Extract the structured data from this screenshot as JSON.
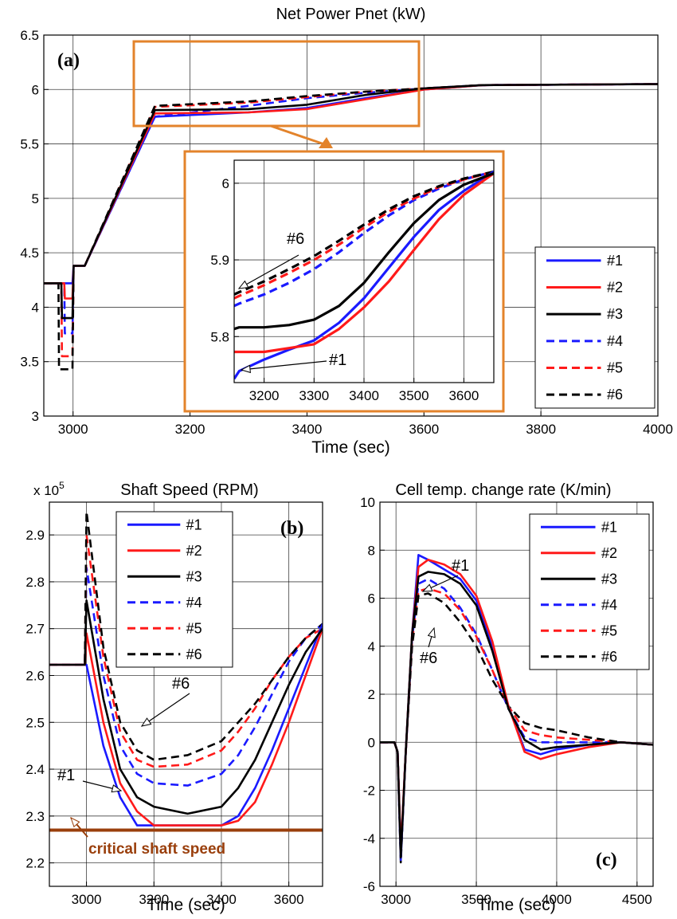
{
  "colors": {
    "s1": "#1a1aff",
    "s2": "#ff1a1a",
    "s3": "#000000",
    "highlight": "#e3832b",
    "critical": "#9a3f0c"
  },
  "legend": [
    "#1",
    "#2",
    "#3",
    "#4",
    "#5",
    "#6"
  ],
  "chart_data": [
    {
      "id": "a",
      "type": "line",
      "panel_label": "(a)",
      "title": "Net Power Pnet (kW)",
      "xlabel": "Time (sec)",
      "ylabel": "",
      "xlim": [
        2950,
        4000
      ],
      "ylim": [
        3,
        6.5
      ],
      "xticks": [
        "3000",
        "3200",
        "3400",
        "3600",
        "3800",
        "4000"
      ],
      "yticks": [
        "3",
        "3.5",
        "4",
        "4.5",
        "5",
        "5.5",
        "6",
        "6.5"
      ],
      "grid": true,
      "legend_position": "lower-right",
      "series": [
        {
          "name": "#1",
          "style": "solid",
          "x": [
            2950,
            2999,
            3001,
            3010,
            3020,
            3140,
            3300,
            3400,
            3500,
            3600,
            3700,
            4000
          ],
          "y": [
            4.22,
            4.22,
            4.38,
            4.38,
            4.38,
            5.75,
            5.79,
            5.83,
            5.92,
            6.0,
            6.04,
            6.05
          ]
        },
        {
          "name": "#2",
          "style": "solid",
          "x": [
            2950,
            2985,
            2986,
            2999,
            3001,
            3010,
            3020,
            3140,
            3300,
            3400,
            3500,
            3600,
            3700,
            4000
          ],
          "y": [
            4.22,
            4.22,
            4.08,
            4.08,
            4.38,
            4.38,
            4.38,
            5.78,
            5.79,
            5.82,
            5.91,
            6.0,
            6.04,
            6.05
          ]
        },
        {
          "name": "#3",
          "style": "solid",
          "x": [
            2950,
            2980,
            2981,
            2999,
            3001,
            3010,
            3020,
            3140,
            3300,
            3400,
            3500,
            3600,
            3700,
            4000
          ],
          "y": [
            4.22,
            4.22,
            3.9,
            3.9,
            4.38,
            4.38,
            4.38,
            5.81,
            5.82,
            5.86,
            5.95,
            6.01,
            6.04,
            6.05
          ]
        },
        {
          "name": "#4",
          "style": "dashed",
          "x": [
            2950,
            2985,
            2986,
            2999,
            3001,
            3010,
            3020,
            3140,
            3300,
            3400,
            3500,
            3600,
            3700,
            4000
          ],
          "y": [
            4.22,
            4.22,
            3.76,
            3.76,
            4.38,
            4.38,
            4.38,
            5.75,
            5.85,
            5.92,
            5.97,
            6.01,
            6.04,
            6.05
          ]
        },
        {
          "name": "#5",
          "style": "dashed",
          "x": [
            2950,
            2980,
            2981,
            2999,
            3001,
            3010,
            3020,
            3140,
            3300,
            3400,
            3500,
            3600,
            3700,
            4000
          ],
          "y": [
            4.22,
            4.22,
            3.55,
            3.55,
            4.38,
            4.38,
            4.38,
            5.84,
            5.88,
            5.93,
            5.98,
            6.01,
            6.04,
            6.05
          ]
        },
        {
          "name": "#6",
          "style": "dashed",
          "x": [
            2950,
            2975,
            2976,
            2999,
            3001,
            3010,
            3020,
            3140,
            3300,
            3400,
            3500,
            3600,
            3700,
            4000
          ],
          "y": [
            4.22,
            4.22,
            3.43,
            3.43,
            4.38,
            4.38,
            4.38,
            5.85,
            5.89,
            5.94,
            5.98,
            6.01,
            6.04,
            6.05
          ]
        }
      ]
    },
    {
      "id": "inset",
      "type": "line",
      "xlim": [
        3140,
        3660
      ],
      "ylim": [
        5.74,
        6.03
      ],
      "xticks": [
        "3200",
        "3300",
        "3400",
        "3500",
        "3600"
      ],
      "yticks": [
        "5.8",
        "5.9",
        "6"
      ],
      "grid": true,
      "annotations": [
        "#6",
        "#1"
      ],
      "series": [
        {
          "name": "#1",
          "style": "solid",
          "x": [
            3140,
            3150,
            3200,
            3250,
            3300,
            3350,
            3400,
            3450,
            3500,
            3550,
            3600,
            3660
          ],
          "y": [
            5.745,
            5.755,
            5.77,
            5.783,
            5.795,
            5.818,
            5.85,
            5.89,
            5.93,
            5.965,
            5.99,
            6.015
          ]
        },
        {
          "name": "#2",
          "style": "solid",
          "x": [
            3140,
            3150,
            3200,
            3250,
            3300,
            3350,
            3400,
            3450,
            3500,
            3550,
            3600,
            3660
          ],
          "y": [
            5.78,
            5.78,
            5.78,
            5.785,
            5.79,
            5.81,
            5.838,
            5.872,
            5.913,
            5.953,
            5.985,
            6.013
          ]
        },
        {
          "name": "#3",
          "style": "solid",
          "x": [
            3140,
            3150,
            3200,
            3250,
            3300,
            3350,
            3400,
            3450,
            3500,
            3550,
            3600,
            3660
          ],
          "y": [
            5.81,
            5.812,
            5.812,
            5.815,
            5.822,
            5.84,
            5.87,
            5.91,
            5.948,
            5.978,
            5.998,
            6.013
          ]
        },
        {
          "name": "#4",
          "style": "dashed",
          "x": [
            3140,
            3150,
            3200,
            3250,
            3300,
            3350,
            3400,
            3450,
            3500,
            3550,
            3600,
            3660
          ],
          "y": [
            5.84,
            5.843,
            5.855,
            5.87,
            5.888,
            5.91,
            5.935,
            5.958,
            5.978,
            5.993,
            6.005,
            6.015
          ]
        },
        {
          "name": "#5",
          "style": "dashed",
          "x": [
            3140,
            3150,
            3200,
            3250,
            3300,
            3350,
            3400,
            3450,
            3500,
            3550,
            3600,
            3660
          ],
          "y": [
            5.85,
            5.853,
            5.867,
            5.883,
            5.9,
            5.92,
            5.942,
            5.963,
            5.98,
            5.995,
            6.005,
            6.015
          ]
        },
        {
          "name": "#6",
          "style": "dashed",
          "x": [
            3140,
            3150,
            3200,
            3250,
            3300,
            3350,
            3400,
            3450,
            3500,
            3550,
            3600,
            3660
          ],
          "y": [
            5.855,
            5.858,
            5.872,
            5.888,
            5.905,
            5.925,
            5.946,
            5.966,
            5.983,
            5.996,
            6.006,
            6.015
          ]
        }
      ]
    },
    {
      "id": "b",
      "type": "line",
      "panel_label": "(b)",
      "title": "Shaft Speed (RPM)",
      "exponent_label": "x 10",
      "exponent_power": "5",
      "xlabel": "Time (sec)",
      "ylabel": "",
      "xlim": [
        2890,
        3700
      ],
      "ylim": [
        2.15,
        2.97
      ],
      "xticks": [
        "3000",
        "3200",
        "3400",
        "3600"
      ],
      "yticks": [
        "2.2",
        "2.3",
        "2.4",
        "2.5",
        "2.6",
        "2.7",
        "2.8",
        "2.9"
      ],
      "grid": true,
      "legend_position": "upper-right",
      "annotations": [
        "#6",
        "#1"
      ],
      "critical_label": "critical shaft speed",
      "critical_value": 2.27,
      "series": [
        {
          "name": "#1",
          "style": "solid",
          "x": [
            2890,
            2995,
            3000,
            3050,
            3100,
            3150,
            3200,
            3300,
            3400,
            3450,
            3500,
            3550,
            3600,
            3650,
            3700
          ],
          "y": [
            2.623,
            2.623,
            2.623,
            2.45,
            2.34,
            2.28,
            2.28,
            2.28,
            2.28,
            2.3,
            2.36,
            2.44,
            2.53,
            2.62,
            2.71
          ]
        },
        {
          "name": "#2",
          "style": "solid",
          "x": [
            2890,
            2995,
            3000,
            3050,
            3100,
            3150,
            3200,
            3300,
            3400,
            3450,
            3500,
            3550,
            3600,
            3650,
            3700
          ],
          "y": [
            2.623,
            2.623,
            2.69,
            2.5,
            2.37,
            2.31,
            2.28,
            2.28,
            2.28,
            2.29,
            2.33,
            2.41,
            2.5,
            2.6,
            2.7
          ]
        },
        {
          "name": "#3",
          "style": "solid",
          "x": [
            2890,
            2995,
            3000,
            3050,
            3100,
            3150,
            3200,
            3300,
            3400,
            3450,
            3500,
            3550,
            3600,
            3650,
            3700
          ],
          "y": [
            2.623,
            2.623,
            2.76,
            2.55,
            2.4,
            2.34,
            2.32,
            2.305,
            2.32,
            2.36,
            2.42,
            2.5,
            2.58,
            2.65,
            2.7
          ]
        },
        {
          "name": "#4",
          "style": "dashed",
          "x": [
            2890,
            2995,
            3000,
            3050,
            3100,
            3150,
            3200,
            3300,
            3400,
            3450,
            3500,
            3550,
            3600,
            3650,
            3700
          ],
          "y": [
            2.623,
            2.623,
            2.83,
            2.6,
            2.45,
            2.39,
            2.37,
            2.365,
            2.39,
            2.43,
            2.49,
            2.56,
            2.63,
            2.68,
            2.71
          ]
        },
        {
          "name": "#5",
          "style": "dashed",
          "x": [
            2890,
            2995,
            3000,
            3050,
            3100,
            3150,
            3200,
            3300,
            3400,
            3450,
            3500,
            3550,
            3600,
            3650,
            3700
          ],
          "y": [
            2.623,
            2.623,
            2.9,
            2.64,
            2.48,
            2.42,
            2.405,
            2.41,
            2.44,
            2.48,
            2.53,
            2.59,
            2.64,
            2.68,
            2.7
          ]
        },
        {
          "name": "#6",
          "style": "dashed",
          "x": [
            2890,
            2995,
            3000,
            3050,
            3100,
            3150,
            3200,
            3300,
            3400,
            3450,
            3500,
            3550,
            3600,
            3650,
            3700
          ],
          "y": [
            2.623,
            2.623,
            2.95,
            2.66,
            2.5,
            2.44,
            2.42,
            2.43,
            2.46,
            2.5,
            2.54,
            2.59,
            2.64,
            2.68,
            2.71
          ]
        }
      ]
    },
    {
      "id": "c",
      "type": "line",
      "panel_label": "(c)",
      "title": "Cell temp. change rate (K/min)",
      "xlabel": "Time (sec)",
      "ylabel": "",
      "xlim": [
        2900,
        4600
      ],
      "ylim": [
        -6,
        10
      ],
      "xticks": [
        "3000",
        "3500",
        "4000",
        "4500"
      ],
      "yticks": [
        "-6",
        "-4",
        "-2",
        "0",
        "2",
        "4",
        "6",
        "8",
        "10"
      ],
      "grid": true,
      "legend_position": "upper-right",
      "annotations": [
        "#1",
        "#6"
      ],
      "series": [
        {
          "name": "#1",
          "style": "solid",
          "x": [
            2900,
            2990,
            3010,
            3030,
            3060,
            3100,
            3140,
            3200,
            3300,
            3400,
            3500,
            3600,
            3700,
            3800,
            3900,
            4000,
            4200,
            4400,
            4600
          ],
          "y": [
            0,
            0,
            -0.4,
            -4.9,
            -0.5,
            4.5,
            7.8,
            7.6,
            7.2,
            6.8,
            5.9,
            4.0,
            1.5,
            -0.3,
            -0.5,
            -0.3,
            -0.1,
            0,
            -0.1
          ]
        },
        {
          "name": "#2",
          "style": "solid",
          "x": [
            2900,
            2990,
            3010,
            3030,
            3060,
            3100,
            3140,
            3200,
            3300,
            3400,
            3500,
            3600,
            3700,
            3800,
            3900,
            4000,
            4200,
            4400,
            4600
          ],
          "y": [
            0,
            0,
            -0.4,
            -4.5,
            -0.5,
            4.5,
            7.3,
            7.6,
            7.4,
            7.0,
            6.1,
            4.2,
            1.5,
            -0.4,
            -0.7,
            -0.5,
            -0.2,
            0,
            -0.1
          ]
        },
        {
          "name": "#3",
          "style": "solid",
          "x": [
            2900,
            2990,
            3010,
            3030,
            3060,
            3100,
            3140,
            3200,
            3300,
            3400,
            3500,
            3600,
            3700,
            3800,
            3900,
            4000,
            4200,
            4400,
            4600
          ],
          "y": [
            0,
            0,
            -0.4,
            -4.8,
            -0.5,
            4.5,
            6.9,
            7.1,
            7.0,
            6.6,
            5.7,
            3.8,
            1.4,
            0.1,
            -0.3,
            -0.2,
            -0.1,
            0,
            -0.1
          ]
        },
        {
          "name": "#4",
          "style": "dashed",
          "x": [
            2900,
            2990,
            3010,
            3030,
            3060,
            3100,
            3140,
            3200,
            3300,
            3400,
            3500,
            3600,
            3700,
            3800,
            3900,
            4000,
            4200,
            4400,
            4600
          ],
          "y": [
            0,
            0,
            -0.4,
            -4.6,
            -0.5,
            4.3,
            6.6,
            6.8,
            6.4,
            5.6,
            4.5,
            3.0,
            1.4,
            0.2,
            0.0,
            0.0,
            0.0,
            0,
            -0.1
          ]
        },
        {
          "name": "#5",
          "style": "dashed",
          "x": [
            2900,
            2990,
            3010,
            3030,
            3060,
            3100,
            3140,
            3200,
            3300,
            3400,
            3500,
            3600,
            3700,
            3800,
            3900,
            4000,
            4200,
            4400,
            4600
          ],
          "y": [
            0,
            0,
            -0.4,
            -4.7,
            -0.5,
            4.2,
            6.3,
            6.4,
            6.2,
            5.5,
            4.4,
            3.0,
            1.5,
            0.5,
            0.3,
            0.2,
            0.1,
            0,
            -0.1
          ]
        },
        {
          "name": "#6",
          "style": "dashed",
          "x": [
            2900,
            2990,
            3010,
            3030,
            3060,
            3100,
            3140,
            3200,
            3300,
            3400,
            3500,
            3600,
            3700,
            3800,
            3900,
            4000,
            4200,
            4400,
            4600
          ],
          "y": [
            0,
            0,
            -0.4,
            -5.0,
            -0.5,
            4.0,
            6.1,
            6.2,
            5.8,
            5.0,
            4.0,
            2.6,
            1.5,
            0.8,
            0.6,
            0.5,
            0.2,
            0,
            -0.1
          ]
        }
      ]
    }
  ]
}
